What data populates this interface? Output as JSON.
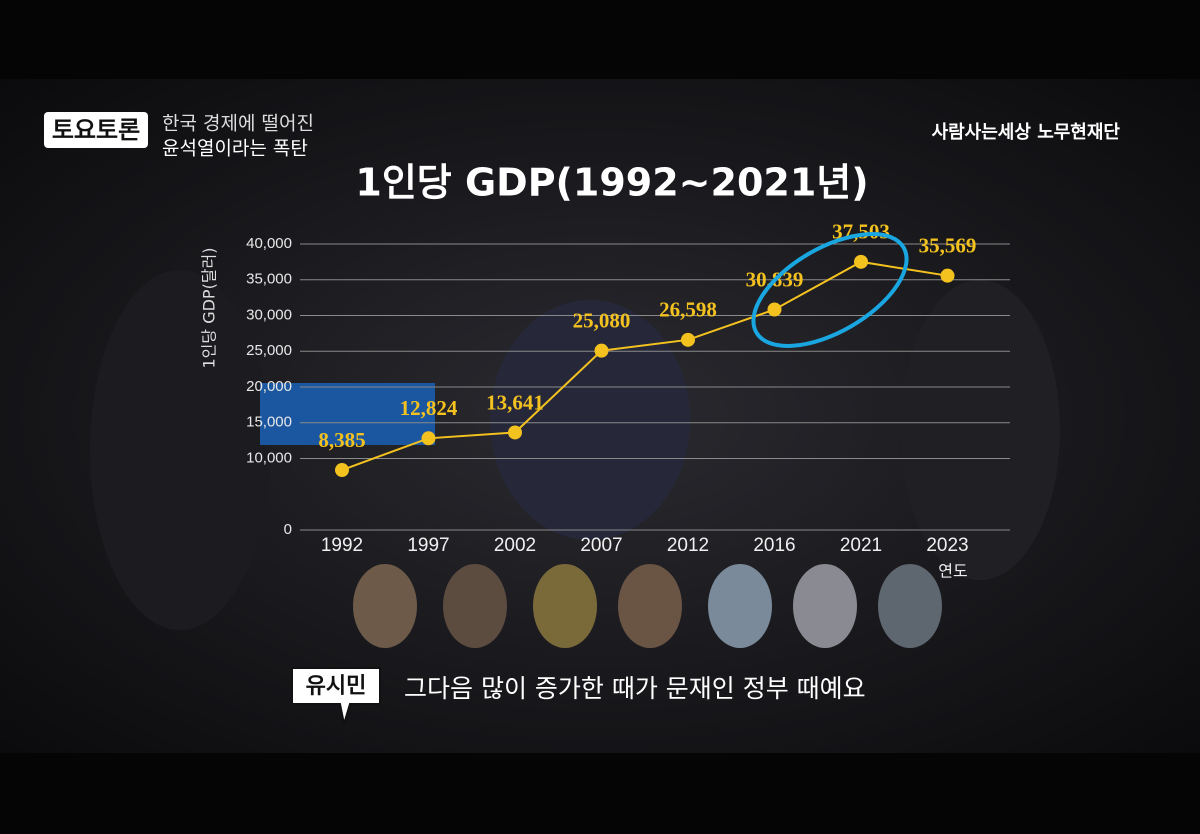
{
  "header": {
    "logo": "토요토론",
    "topic_line1": "한국 경제에 떨어진",
    "topic_line2": "윤석열이라는 폭탄",
    "foundation": "사람사는세상 노무현재단"
  },
  "caption": {
    "speaker": "유시민",
    "text": "그다음 많이 증가한 때가 문재인 정부 때예요"
  },
  "chart_data": {
    "type": "line",
    "title": "1인당 GDP(1992~2021년)",
    "y_label": "1인당 GDP(달러)",
    "x_label": "연도",
    "categories": [
      "1992",
      "1997",
      "2002",
      "2007",
      "2012",
      "2016",
      "2021",
      "2023"
    ],
    "values": [
      8385,
      12824,
      13641,
      25080,
      26598,
      30839,
      37503,
      35569
    ],
    "value_labels": [
      "8,385",
      "12,824",
      "13,641",
      "25,080",
      "26,598",
      "30,839",
      "37,503",
      "35,569"
    ],
    "color": "#f4c21f",
    "ylim": [
      0,
      40000
    ],
    "yticks": [
      0,
      {
        "value": 10000,
        "label": "10,000"
      },
      {
        "value": 15000,
        "label": "15,000"
      },
      {
        "value": 20000,
        "label": "20,000"
      },
      {
        "value": 25000,
        "label": "25,000"
      },
      {
        "value": 30000,
        "label": "30,000"
      },
      {
        "value": 35000,
        "label": "35,000"
      },
      {
        "value": 40000,
        "label": "40,000"
      }
    ],
    "grid": true
  }
}
